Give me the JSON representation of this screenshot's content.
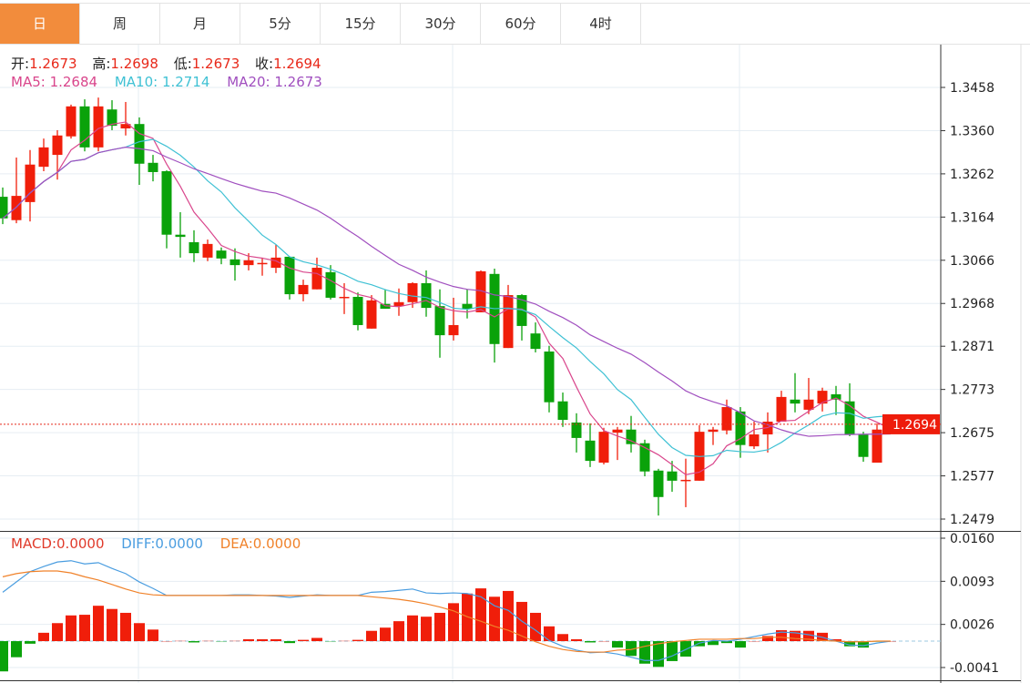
{
  "tabs": [
    {
      "label": "日",
      "active": true
    },
    {
      "label": "周"
    },
    {
      "label": "月"
    },
    {
      "label": "5分"
    },
    {
      "label": "15分"
    },
    {
      "label": "30分"
    },
    {
      "label": "60分"
    },
    {
      "label": "4时"
    }
  ],
  "ohlc_legend": {
    "open_label": "开:",
    "open": "1.2673",
    "high_label": "高:",
    "high": "1.2698",
    "low_label": "低:",
    "low": "1.2673",
    "close_label": "收:",
    "close": "1.2694"
  },
  "ma_legend": {
    "ma5": "MA5: 1.2684",
    "ma10": "MA10: 1.2714",
    "ma20": "MA20: 1.2673"
  },
  "macd_legend": {
    "macd": "MACD:0.0000",
    "diff": "DIFF:0.0000",
    "dea": "DEA:0.0000"
  },
  "colors": {
    "up": "#f01e0a",
    "down": "#0aa20a",
    "ma5": "#d9468c",
    "ma10": "#3fc1d4",
    "ma20": "#a04fbf",
    "diff": "#4a9de0",
    "dea": "#f0822a",
    "active_tab": "#f28c3c"
  },
  "chart_data": [
    {
      "type": "candlestick",
      "price_ticks": [
        "1.3458",
        "1.3360",
        "1.3262",
        "1.3164",
        "1.3066",
        "1.2968",
        "1.2871",
        "1.2773",
        "1.2675",
        "1.2577",
        "1.2479"
      ],
      "ylim": [
        1.2479,
        1.3458
      ],
      "current_price": "1.2694",
      "grid": true,
      "ohlc": [
        [
          1.321,
          1.3231,
          1.3148,
          1.3161
        ],
        [
          1.3157,
          1.3299,
          1.315,
          1.3212
        ],
        [
          1.3198,
          1.3316,
          1.3154,
          1.3283
        ],
        [
          1.3278,
          1.3342,
          1.3268,
          1.3322
        ],
        [
          1.3305,
          1.3361,
          1.3249,
          1.3349
        ],
        [
          1.3347,
          1.3419,
          1.3342,
          1.3415
        ],
        [
          1.3415,
          1.3431,
          1.3313,
          1.3322
        ],
        [
          1.3322,
          1.3435,
          1.3313,
          1.3415
        ],
        [
          1.3408,
          1.3429,
          1.3361,
          1.3371
        ],
        [
          1.3365,
          1.3425,
          1.3349,
          1.3375
        ],
        [
          1.3375,
          1.339,
          1.3237,
          1.3285
        ],
        [
          1.3287,
          1.3305,
          1.3245,
          1.3266
        ],
        [
          1.3268,
          1.327,
          1.3093,
          1.3124
        ],
        [
          1.3124,
          1.3175,
          1.3072,
          1.3119
        ],
        [
          1.3107,
          1.3134,
          1.3062,
          1.3082
        ],
        [
          1.3072,
          1.3113,
          1.3064,
          1.3103
        ],
        [
          1.3088,
          1.3095,
          1.3057,
          1.307
        ],
        [
          1.3068,
          1.3093,
          1.302,
          1.3055
        ],
        [
          1.3055,
          1.3082,
          1.3043,
          1.3066
        ],
        [
          1.3057,
          1.3072,
          1.3031,
          1.306
        ],
        [
          1.3049,
          1.3101,
          1.3037,
          1.3072
        ],
        [
          1.3074,
          1.3074,
          1.2977,
          1.2989
        ],
        [
          1.2989,
          1.3022,
          1.2973,
          1.301
        ],
        [
          1.3,
          1.3072,
          1.3,
          1.3049
        ],
        [
          1.3039,
          1.3055,
          1.2977,
          1.2981
        ],
        [
          1.2981,
          1.3014,
          1.2944,
          1.2983
        ],
        [
          1.2983,
          1.2993,
          1.2907,
          1.2919
        ],
        [
          1.2911,
          1.2987,
          1.2911,
          1.2975
        ],
        [
          1.2967,
          1.3,
          1.2956,
          1.2956
        ],
        [
          1.2962,
          1.3002,
          1.294,
          1.2971
        ],
        [
          1.2971,
          1.3016,
          1.2958,
          1.3014
        ],
        [
          1.3014,
          1.3043,
          1.2938,
          1.2958
        ],
        [
          1.2962,
          1.3,
          1.2845,
          1.2896
        ],
        [
          1.2896,
          1.2981,
          1.2884,
          1.2919
        ],
        [
          1.2967,
          1.3,
          1.2934,
          1.2956
        ],
        [
          1.2948,
          1.3043,
          1.2948,
          1.3041
        ],
        [
          1.3035,
          1.3047,
          1.2834,
          1.2876
        ],
        [
          1.2867,
          1.301,
          1.2867,
          1.2987
        ],
        [
          1.2987,
          1.2989,
          1.2884,
          1.2917
        ],
        [
          1.29,
          1.2925,
          1.2857,
          1.2865
        ],
        [
          1.2859,
          1.2872,
          1.2721,
          1.2744
        ],
        [
          1.2746,
          1.2766,
          1.2688,
          1.2704
        ],
        [
          1.2698,
          1.2719,
          1.263,
          1.2663
        ],
        [
          1.2657,
          1.2696,
          1.2597,
          1.2611
        ],
        [
          1.2607,
          1.2686,
          1.2603,
          1.2677
        ],
        [
          1.2675,
          1.2688,
          1.2613,
          1.2682
        ],
        [
          1.2682,
          1.2713,
          1.263,
          1.2649
        ],
        [
          1.2651,
          1.2659,
          1.2576,
          1.2587
        ],
        [
          1.2589,
          1.2593,
          1.2487,
          1.2529
        ],
        [
          1.2587,
          1.2611,
          1.2541,
          1.2566
        ],
        [
          1.2566,
          1.2616,
          1.2506,
          1.2568
        ],
        [
          1.2566,
          1.2692,
          1.2566,
          1.2677
        ],
        [
          1.2677,
          1.2688,
          1.2647,
          1.2682
        ],
        [
          1.268,
          1.275,
          1.2671,
          1.2733
        ],
        [
          1.2723,
          1.2733,
          1.2618,
          1.2647
        ],
        [
          1.2644,
          1.27,
          1.2638,
          1.2671
        ],
        [
          1.2671,
          1.2721,
          1.263,
          1.27
        ],
        [
          1.27,
          1.277,
          1.27,
          1.2756
        ],
        [
          1.275,
          1.281,
          1.2721,
          1.2741
        ],
        [
          1.2727,
          1.2799,
          1.2717,
          1.275
        ],
        [
          1.2741,
          1.2777,
          1.2723,
          1.277
        ],
        [
          1.2762,
          1.2781,
          1.2715,
          1.275
        ],
        [
          1.2746,
          1.2787,
          1.2667,
          1.2671
        ],
        [
          1.2671,
          1.2677,
          1.2609,
          1.262
        ],
        [
          1.2607,
          1.2696,
          1.2607,
          1.2682
        ],
        [
          1.2673,
          1.2698,
          1.2673,
          1.2694
        ]
      ]
    },
    {
      "type": "macd",
      "ticks": [
        "0.0160",
        "0.0093",
        "0.0026",
        "-0.0041"
      ],
      "ylim": [
        -0.0041,
        0.016
      ],
      "histogram": [
        -0.0047,
        -0.0025,
        -0.0004,
        0.0013,
        0.0028,
        0.004,
        0.0041,
        0.0055,
        0.005,
        0.0044,
        0.0028,
        0.0018,
        0.0,
        0.0001,
        -0.0002,
        0.0001,
        -0.0001,
        0.0001,
        0.0003,
        0.0003,
        0.0003,
        -0.0003,
        0.0002,
        0.0005,
        -0.0001,
        0.0001,
        0.0002,
        0.0016,
        0.0021,
        0.0031,
        0.004,
        0.0038,
        0.0044,
        0.0059,
        0.0074,
        0.0082,
        0.0069,
        0.0078,
        0.0061,
        0.0044,
        0.0023,
        0.0011,
        0.0003,
        -0.0002,
        0.0,
        -0.001,
        -0.0023,
        -0.0035,
        -0.004,
        -0.0031,
        -0.0024,
        -0.0008,
        -0.0006,
        -0.0003,
        -0.001,
        0.0,
        0.0008,
        0.0017,
        0.0016,
        0.0016,
        0.0013,
        0.0003,
        -0.0008,
        -0.001,
        -0.0001,
        0.0
      ],
      "diff": [
        0.0076,
        0.0092,
        0.0108,
        0.0116,
        0.0123,
        0.0125,
        0.012,
        0.0122,
        0.0113,
        0.0105,
        0.0092,
        0.0082,
        0.0071,
        0.0071,
        0.0071,
        0.0071,
        0.0071,
        0.0072,
        0.0072,
        0.0071,
        0.007,
        0.0068,
        0.007,
        0.0072,
        0.0071,
        0.0071,
        0.0071,
        0.0076,
        0.0077,
        0.0079,
        0.0081,
        0.0075,
        0.0074,
        0.0075,
        0.0074,
        0.0069,
        0.0055,
        0.0048,
        0.0031,
        0.0017,
        0.0001,
        -0.0008,
        -0.0014,
        -0.0018,
        -0.0017,
        -0.002,
        -0.0025,
        -0.003,
        -0.003,
        -0.0023,
        -0.0013,
        -0.0003,
        0.0001,
        0.0,
        0.0003,
        0.0007,
        0.0011,
        0.0014,
        0.0013,
        0.001,
        0.0006,
        0.0,
        -0.0006,
        -0.0007,
        -0.0003,
        0.0
      ],
      "dea": [
        0.01,
        0.0105,
        0.0108,
        0.0109,
        0.0109,
        0.0106,
        0.01,
        0.0095,
        0.0088,
        0.0081,
        0.0075,
        0.0072,
        0.0071,
        0.0071,
        0.0071,
        0.0071,
        0.0071,
        0.0071,
        0.0071,
        0.0071,
        0.0071,
        0.0071,
        0.0071,
        0.0071,
        0.0071,
        0.0071,
        0.0071,
        0.0069,
        0.0067,
        0.0065,
        0.0062,
        0.0058,
        0.0053,
        0.0047,
        0.0038,
        0.0031,
        0.0023,
        0.0017,
        0.0008,
        -0.0001,
        -0.0008,
        -0.0013,
        -0.0016,
        -0.0017,
        -0.0017,
        -0.0014,
        -0.0013,
        -0.0008,
        -0.0004,
        -0.0001,
        0.0001,
        0.0003,
        0.0003,
        0.0003,
        0.0004,
        0.0004,
        0.0006,
        0.0006,
        0.0004,
        0.0003,
        0.0001,
        0.0,
        -0.0001,
        -0.0001,
        0.0,
        0.0
      ]
    }
  ]
}
